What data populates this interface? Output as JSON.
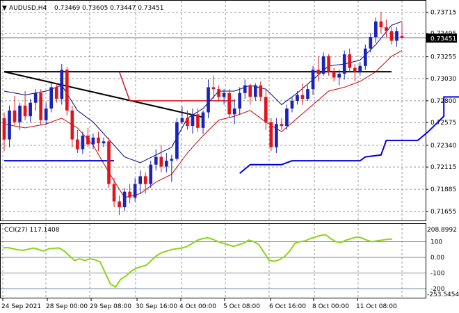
{
  "header": {
    "symbol": "AUDUSD,H4",
    "ohlc": "0.73469 0.73605 0.73447 0.73451"
  },
  "price_panel": {
    "y_ticks": [
      "0.73715",
      "0.73495",
      "0.73255",
      "0.73030",
      "0.72800",
      "0.72575",
      "0.72340",
      "0.72115",
      "0.71885",
      "0.71655"
    ],
    "current_price": "0.73451"
  },
  "indicator_panel": {
    "label": "CCI(27) 117.1408",
    "top_value": "208.8992",
    "bottom_value": "-253.5454",
    "levels": [
      "100",
      "0.00",
      "-100",
      "-200"
    ]
  },
  "time_axis": {
    "labels": [
      "24 Sep 2021",
      "28 Sep 00:00",
      "29 Sep 08:00",
      "30 Sep 16:00",
      "4 Oct 00:00",
      "5 Oct 08:00",
      "6 Oct 16:00",
      "8 Oct 00:00",
      "11 Oct 08:00"
    ]
  },
  "colors": {
    "bull": "#1a22b8",
    "bear": "#e0141e",
    "grid": "#9a9a9a",
    "upper_band": "#00007a",
    "lower_band": "#c80000",
    "stop_line": "#0000e0",
    "cci": "#8ad614",
    "trendline": "#000000"
  },
  "chart_data": {
    "type": "candlestick",
    "series_name": "AUDUSD,H4",
    "ylim": [
      0.7157,
      0.7382
    ],
    "candles": [
      [
        0.7262,
        0.7268,
        0.7228,
        0.724
      ],
      [
        0.724,
        0.7275,
        0.7232,
        0.727
      ],
      [
        0.727,
        0.7285,
        0.7255,
        0.7258
      ],
      [
        0.7258,
        0.7278,
        0.725,
        0.7275
      ],
      [
        0.7275,
        0.729,
        0.726,
        0.7264
      ],
      [
        0.7264,
        0.7282,
        0.7258,
        0.7278
      ],
      [
        0.7278,
        0.7292,
        0.727,
        0.7288
      ],
      [
        0.7288,
        0.7292,
        0.7255,
        0.726
      ],
      [
        0.726,
        0.7278,
        0.7255,
        0.7272
      ],
      [
        0.7272,
        0.7298,
        0.7268,
        0.7294
      ],
      [
        0.7294,
        0.7298,
        0.7278,
        0.7282
      ],
      [
        0.7282,
        0.7318,
        0.7276,
        0.7312
      ],
      [
        0.7312,
        0.7315,
        0.7265,
        0.727
      ],
      [
        0.727,
        0.7275,
        0.7232,
        0.724
      ],
      [
        0.724,
        0.725,
        0.7226,
        0.723
      ],
      [
        0.723,
        0.7248,
        0.7225,
        0.7244
      ],
      [
        0.7244,
        0.7252,
        0.7232,
        0.7235
      ],
      [
        0.7235,
        0.7246,
        0.723,
        0.7242
      ],
      [
        0.7242,
        0.7248,
        0.7228,
        0.7236
      ],
      [
        0.7236,
        0.7242,
        0.7232,
        0.7238
      ],
      [
        0.7238,
        0.7242,
        0.719,
        0.7194
      ],
      [
        0.7194,
        0.72,
        0.717,
        0.7176
      ],
      [
        0.7176,
        0.7182,
        0.7162,
        0.717
      ],
      [
        0.717,
        0.719,
        0.7166,
        0.7186
      ],
      [
        0.7186,
        0.7194,
        0.7174,
        0.718
      ],
      [
        0.718,
        0.72,
        0.7176,
        0.7194
      ],
      [
        0.7194,
        0.7208,
        0.7184,
        0.7202
      ],
      [
        0.7202,
        0.7206,
        0.7184,
        0.7194
      ],
      [
        0.7194,
        0.7218,
        0.719,
        0.7214
      ],
      [
        0.7214,
        0.723,
        0.7208,
        0.7222
      ],
      [
        0.7222,
        0.7234,
        0.7206,
        0.7212
      ],
      [
        0.7212,
        0.7226,
        0.7206,
        0.7218
      ],
      [
        0.7218,
        0.7224,
        0.7196,
        0.722
      ],
      [
        0.722,
        0.7262,
        0.7218,
        0.7258
      ],
      [
        0.7258,
        0.7274,
        0.7256,
        0.7262
      ],
      [
        0.7262,
        0.727,
        0.725,
        0.7254
      ],
      [
        0.7254,
        0.7272,
        0.7246,
        0.7266
      ],
      [
        0.7266,
        0.7272,
        0.7248,
        0.7252
      ],
      [
        0.7252,
        0.727,
        0.7246,
        0.7268
      ],
      [
        0.7268,
        0.7302,
        0.7262,
        0.7294
      ],
      [
        0.7294,
        0.7306,
        0.7282,
        0.7292
      ],
      [
        0.7292,
        0.7296,
        0.728,
        0.7284
      ],
      [
        0.7284,
        0.7292,
        0.7276,
        0.7288
      ],
      [
        0.7288,
        0.7292,
        0.7262,
        0.7266
      ],
      [
        0.7266,
        0.7282,
        0.7256,
        0.7272
      ],
      [
        0.7272,
        0.7294,
        0.7266,
        0.7288
      ],
      [
        0.7288,
        0.7302,
        0.7282,
        0.7296
      ],
      [
        0.7296,
        0.7298,
        0.7276,
        0.7284
      ],
      [
        0.7284,
        0.7298,
        0.728,
        0.7296
      ],
      [
        0.7296,
        0.73,
        0.728,
        0.7284
      ],
      [
        0.7284,
        0.7292,
        0.725,
        0.7258
      ],
      [
        0.7258,
        0.7262,
        0.7228,
        0.7232
      ],
      [
        0.7232,
        0.7262,
        0.7226,
        0.7256
      ],
      [
        0.7256,
        0.7262,
        0.725,
        0.7254
      ],
      [
        0.7254,
        0.7276,
        0.725,
        0.7272
      ],
      [
        0.7272,
        0.7284,
        0.7268,
        0.728
      ],
      [
        0.728,
        0.729,
        0.7276,
        0.7286
      ],
      [
        0.7286,
        0.7298,
        0.7276,
        0.7282
      ],
      [
        0.7282,
        0.7296,
        0.728,
        0.7292
      ],
      [
        0.7292,
        0.7316,
        0.7286,
        0.7312
      ],
      [
        0.7312,
        0.7326,
        0.73,
        0.7308
      ],
      [
        0.7308,
        0.733,
        0.7306,
        0.7326
      ],
      [
        0.7326,
        0.7328,
        0.7306,
        0.731
      ],
      [
        0.731,
        0.7314,
        0.73,
        0.7304
      ],
      [
        0.7304,
        0.7312,
        0.7296,
        0.7308
      ],
      [
        0.7308,
        0.7332,
        0.7302,
        0.7328
      ],
      [
        0.7328,
        0.7334,
        0.731,
        0.7314
      ],
      [
        0.7314,
        0.7318,
        0.73,
        0.731
      ],
      [
        0.731,
        0.732,
        0.7306,
        0.7316
      ],
      [
        0.7316,
        0.7338,
        0.7312,
        0.7334
      ],
      [
        0.7334,
        0.735,
        0.733,
        0.7346
      ],
      [
        0.7346,
        0.7366,
        0.734,
        0.7362
      ],
      [
        0.7362,
        0.7372,
        0.735,
        0.7356
      ],
      [
        0.7356,
        0.7364,
        0.7346,
        0.7352
      ],
      [
        0.7352,
        0.7356,
        0.7338,
        0.7342
      ],
      [
        0.7342,
        0.7356,
        0.7336,
        0.7352
      ],
      [
        0.7347,
        0.7361,
        0.7345,
        0.7345
      ]
    ],
    "upper_band": [
      [
        0,
        0.729
      ],
      [
        4,
        0.7286
      ],
      [
        8,
        0.729
      ],
      [
        11,
        0.7296
      ],
      [
        14,
        0.727
      ],
      [
        17,
        0.7258
      ],
      [
        20,
        0.724
      ],
      [
        23,
        0.7222
      ],
      [
        26,
        0.7216
      ],
      [
        29,
        0.7224
      ],
      [
        32,
        0.7232
      ],
      [
        35,
        0.7262
      ],
      [
        38,
        0.7272
      ],
      [
        41,
        0.729
      ],
      [
        44,
        0.729
      ],
      [
        47,
        0.7296
      ],
      [
        50,
        0.7292
      ],
      [
        53,
        0.7276
      ],
      [
        56,
        0.7288
      ],
      [
        59,
        0.7302
      ],
      [
        62,
        0.7316
      ],
      [
        65,
        0.7318
      ],
      [
        68,
        0.7322
      ],
      [
        71,
        0.7338
      ],
      [
        74,
        0.7358
      ],
      [
        76,
        0.7362
      ]
    ],
    "lower_band": [
      [
        0,
        0.7256
      ],
      [
        4,
        0.7252
      ],
      [
        8,
        0.7256
      ],
      [
        11,
        0.7262
      ],
      [
        14,
        0.7252
      ],
      [
        17,
        0.7234
      ],
      [
        20,
        0.7206
      ],
      [
        23,
        0.718
      ],
      [
        26,
        0.7184
      ],
      [
        29,
        0.7196
      ],
      [
        32,
        0.7204
      ],
      [
        35,
        0.7226
      ],
      [
        38,
        0.7244
      ],
      [
        41,
        0.726
      ],
      [
        44,
        0.7264
      ],
      [
        47,
        0.727
      ],
      [
        50,
        0.7258
      ],
      [
        53,
        0.7248
      ],
      [
        56,
        0.7262
      ],
      [
        59,
        0.7276
      ],
      [
        62,
        0.729
      ],
      [
        65,
        0.7294
      ],
      [
        68,
        0.73
      ],
      [
        71,
        0.731
      ],
      [
        74,
        0.7326
      ],
      [
        76,
        0.7332
      ]
    ],
    "stop_segments": [
      [
        [
          0,
          0.7218
        ],
        [
          21,
          0.7218
        ]
      ],
      [
        [
          45,
          0.7205
        ],
        [
          47,
          0.7214
        ],
        [
          53,
          0.7214
        ],
        [
          55,
          0.7218
        ],
        [
          68,
          0.7218
        ],
        [
          69,
          0.7222
        ],
        [
          72,
          0.7224
        ],
        [
          73,
          0.7239
        ],
        [
          79,
          0.7239
        ],
        [
          81,
          0.7248
        ],
        [
          84,
          0.7264
        ],
        [
          84,
          0.7284
        ],
        [
          90,
          0.7284
        ]
      ]
    ],
    "resistance_line": [
      [
        0,
        0.731
      ],
      [
        74,
        0.731
      ]
    ],
    "trend_line": [
      [
        0,
        0.731
      ],
      [
        38,
        0.7263
      ]
    ],
    "red_marker": [
      [
        22,
        0.731
      ],
      [
        24,
        0.728
      ],
      [
        44,
        0.728
      ]
    ],
    "cci_values": [
      60,
      62,
      55,
      48,
      45,
      52,
      60,
      50,
      40,
      55,
      58,
      60,
      40,
      10,
      -20,
      -10,
      -20,
      -10,
      -15,
      -30,
      -100,
      -170,
      -190,
      -140,
      -120,
      -90,
      -70,
      -60,
      -50,
      -20,
      10,
      30,
      40,
      50,
      55,
      60,
      70,
      90,
      110,
      120,
      125,
      115,
      100,
      90,
      80,
      70,
      80,
      90,
      110,
      100,
      80,
      30,
      -20,
      -25,
      -15,
      5,
      40,
      90,
      100,
      105,
      120,
      130,
      140,
      145,
      120,
      100,
      95,
      110,
      120,
      130,
      125,
      110,
      100,
      105,
      110,
      115,
      117
    ],
    "cci_ylim": [
      -253.5454,
      208.8992
    ],
    "cci_levels": [
      100,
      0,
      -100,
      -200
    ]
  }
}
